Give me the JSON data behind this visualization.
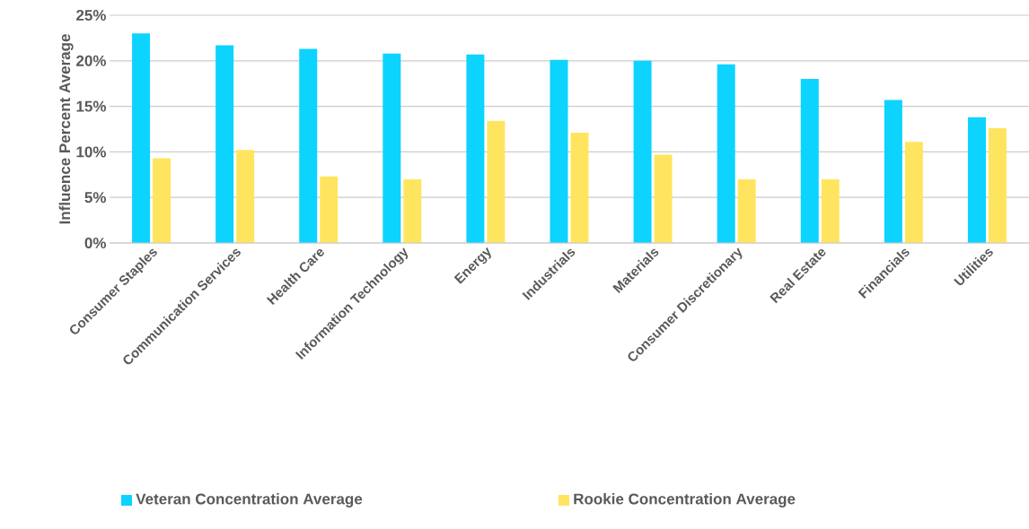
{
  "chart_data": {
    "type": "bar",
    "ylabel": "Influence Percent Average",
    "categories": [
      "Consumer Staples",
      "Communication Services",
      "Health Care",
      "Information Technology",
      "Energy",
      "Industrials",
      "Materials",
      "Consumer Discretionary",
      "Real Estate",
      "Financials",
      "Utilities"
    ],
    "series": [
      {
        "name": "Veteran Concentration Average",
        "color": "#0dd3ff",
        "values": [
          23.0,
          21.7,
          21.3,
          20.8,
          20.7,
          20.1,
          20.0,
          19.6,
          18.0,
          15.7,
          13.8
        ]
      },
      {
        "name": "Rookie Concentration Average",
        "color": "#ffe55f",
        "values": [
          9.3,
          10.2,
          7.3,
          7.0,
          13.4,
          12.1,
          9.7,
          7.0,
          7.0,
          11.1,
          12.6
        ]
      }
    ],
    "ylim": [
      0,
      25
    ],
    "yticks": [
      {
        "value": 0,
        "label": "0%"
      },
      {
        "value": 5,
        "label": "5%"
      },
      {
        "value": 10,
        "label": "10%"
      },
      {
        "value": 15,
        "label": "15%"
      },
      {
        "value": 20,
        "label": "20%"
      },
      {
        "value": 25,
        "label": "25%"
      }
    ],
    "grid": "y",
    "legend": "bottom"
  }
}
